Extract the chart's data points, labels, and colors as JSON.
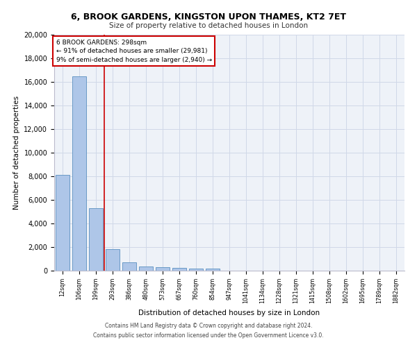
{
  "title_line1": "6, BROOK GARDENS, KINGSTON UPON THAMES, KT2 7ET",
  "title_line2": "Size of property relative to detached houses in London",
  "xlabel": "Distribution of detached houses by size in London",
  "ylabel": "Number of detached properties",
  "categories": [
    "12sqm",
    "106sqm",
    "199sqm",
    "293sqm",
    "386sqm",
    "480sqm",
    "573sqm",
    "667sqm",
    "760sqm",
    "854sqm",
    "947sqm",
    "1041sqm",
    "1134sqm",
    "1228sqm",
    "1321sqm",
    "1415sqm",
    "1508sqm",
    "1602sqm",
    "1695sqm",
    "1789sqm",
    "1882sqm"
  ],
  "bar_heights": [
    8100,
    16500,
    5300,
    1850,
    700,
    370,
    270,
    220,
    180,
    150,
    0,
    0,
    0,
    0,
    0,
    0,
    0,
    0,
    0,
    0,
    0
  ],
  "bar_color": "#aec6e8",
  "bar_edge_color": "#5a8fc0",
  "vline_color": "#cc0000",
  "annotation_text": "6 BROOK GARDENS: 298sqm\n← 91% of detached houses are smaller (29,981)\n9% of semi-detached houses are larger (2,940) →",
  "annotation_box_color": "#ffffff",
  "annotation_box_edge_color": "#cc0000",
  "ylim": [
    0,
    20000
  ],
  "yticks": [
    0,
    2000,
    4000,
    6000,
    8000,
    10000,
    12000,
    14000,
    16000,
    18000,
    20000
  ],
  "grid_color": "#d0d8e8",
  "background_color": "#eef2f8",
  "footer_line1": "Contains HM Land Registry data © Crown copyright and database right 2024.",
  "footer_line2": "Contains public sector information licensed under the Open Government Licence v3.0."
}
